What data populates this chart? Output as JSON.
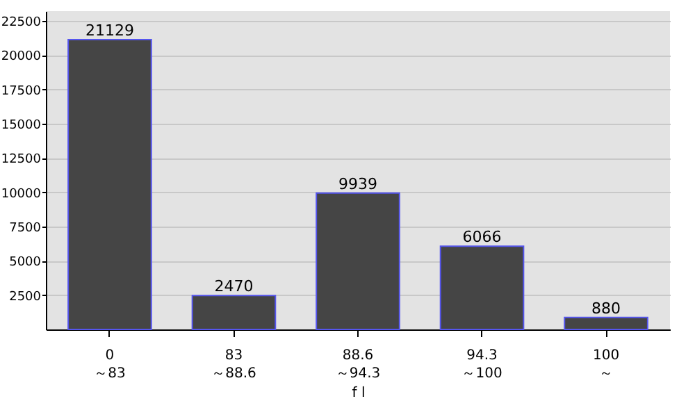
{
  "chart_data": {
    "type": "bar",
    "xlabel": "f l",
    "categories": [
      "0\n～83",
      "83\n～88.6",
      "88.6\n～94.3",
      "94.3\n～100",
      "100\n～"
    ],
    "values": [
      21129,
      2470,
      9939,
      6066,
      880
    ],
    "color": "#454545",
    "ylim": [
      0,
      23200
    ],
    "yticks": [
      2500,
      5000,
      7500,
      10000,
      12500,
      15000,
      17500,
      20000,
      22500
    ],
    "grid": "y",
    "data_labels": true
  }
}
